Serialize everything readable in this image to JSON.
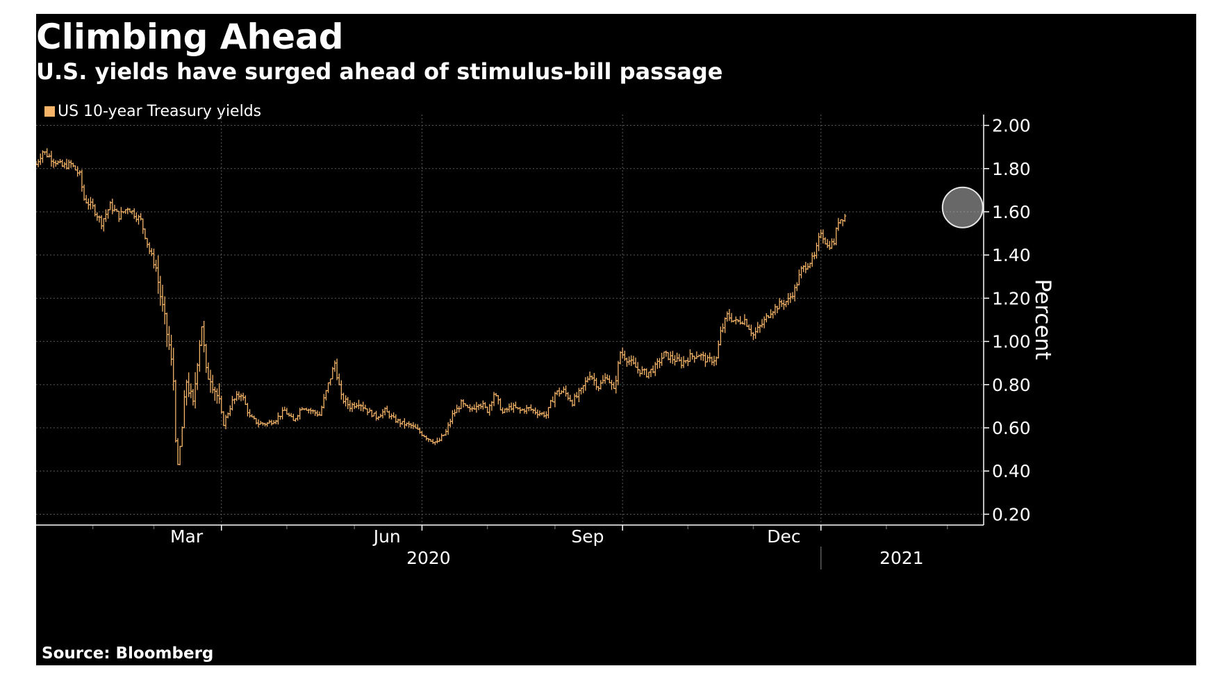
{
  "colors": {
    "background": "#000000",
    "series": "#f5b467",
    "grid": "#5a5a5a",
    "text": "#ffffff",
    "highlight": "#bdbdbd"
  },
  "source": "Source: Bloomberg",
  "chart_data": {
    "type": "bar",
    "style": "ohlc",
    "title": "Climbing Ahead",
    "subtitle": "U.S. yields have surged ahead of stimulus-bill passage",
    "ylabel": "Percent",
    "ylim": [
      0.15,
      2.05
    ],
    "y_ticks": [
      0.2,
      0.4,
      0.6,
      0.8,
      1.0,
      1.2,
      1.4,
      1.6,
      1.8,
      2.0
    ],
    "y_tick_labels": [
      "0.20",
      "0.40",
      "0.60",
      "0.80",
      "1.00",
      "1.20",
      "1.40",
      "1.60",
      "1.80",
      "2.00"
    ],
    "x_start_day": 0,
    "x_end_day": 434,
    "x_gridline_days": [
      85,
      177,
      269,
      360
    ],
    "x_minor_tick_days": [
      26,
      54,
      115,
      146,
      207,
      238,
      299,
      329,
      390,
      418
    ],
    "month_labels": [
      {
        "label": "Mar",
        "day": 69
      },
      {
        "label": "Jun",
        "day": 161
      },
      {
        "label": "Sep",
        "day": 253
      },
      {
        "label": "Dec",
        "day": 343
      }
    ],
    "year_labels": [
      {
        "label": "2020",
        "day": 180
      },
      {
        "label": "2021",
        "day": 397
      }
    ],
    "year_divider_day": 360,
    "legend": [
      "US 10-year Treasury yields"
    ],
    "annotation": {
      "type": "circle",
      "day": 425,
      "value": 1.62,
      "note": "highlight of latest yield peak"
    },
    "series": [
      {
        "name": "US 10-year Treasury yields",
        "anchor_points": [
          [
            0,
            1.82
          ],
          [
            3,
            1.88
          ],
          [
            8,
            1.84
          ],
          [
            12,
            1.81
          ],
          [
            16,
            1.82
          ],
          [
            20,
            1.77
          ],
          [
            22,
            1.66
          ],
          [
            26,
            1.62
          ],
          [
            30,
            1.55
          ],
          [
            34,
            1.63
          ],
          [
            38,
            1.58
          ],
          [
            42,
            1.62
          ],
          [
            46,
            1.58
          ],
          [
            48,
            1.56
          ],
          [
            52,
            1.42
          ],
          [
            55,
            1.34
          ],
          [
            58,
            1.15
          ],
          [
            61,
            0.98
          ],
          [
            63,
            0.82
          ],
          [
            64,
            0.55
          ],
          [
            65,
            0.42
          ],
          [
            67,
            0.6
          ],
          [
            69,
            0.82
          ],
          [
            72,
            0.7
          ],
          [
            74,
            0.92
          ],
          [
            76,
            1.08
          ],
          [
            78,
            0.85
          ],
          [
            80,
            0.84
          ],
          [
            83,
            0.75
          ],
          [
            86,
            0.62
          ],
          [
            90,
            0.72
          ],
          [
            94,
            0.76
          ],
          [
            98,
            0.65
          ],
          [
            102,
            0.62
          ],
          [
            106,
            0.62
          ],
          [
            110,
            0.64
          ],
          [
            114,
            0.68
          ],
          [
            118,
            0.63
          ],
          [
            122,
            0.7
          ],
          [
            126,
            0.68
          ],
          [
            130,
            0.66
          ],
          [
            134,
            0.8
          ],
          [
            137,
            0.9
          ],
          [
            140,
            0.74
          ],
          [
            144,
            0.7
          ],
          [
            148,
            0.72
          ],
          [
            152,
            0.68
          ],
          [
            156,
            0.65
          ],
          [
            160,
            0.68
          ],
          [
            164,
            0.64
          ],
          [
            168,
            0.62
          ],
          [
            172,
            0.61
          ],
          [
            176,
            0.58
          ],
          [
            180,
            0.55
          ],
          [
            184,
            0.53
          ],
          [
            188,
            0.58
          ],
          [
            191,
            0.66
          ],
          [
            195,
            0.71
          ],
          [
            199,
            0.68
          ],
          [
            203,
            0.72
          ],
          [
            207,
            0.68
          ],
          [
            210,
            0.76
          ],
          [
            214,
            0.67
          ],
          [
            218,
            0.7
          ],
          [
            222,
            0.68
          ],
          [
            226,
            0.69
          ],
          [
            230,
            0.67
          ],
          [
            234,
            0.66
          ],
          [
            238,
            0.76
          ],
          [
            242,
            0.77
          ],
          [
            246,
            0.72
          ],
          [
            250,
            0.77
          ],
          [
            254,
            0.85
          ],
          [
            258,
            0.79
          ],
          [
            262,
            0.84
          ],
          [
            265,
            0.77
          ],
          [
            268,
            0.95
          ],
          [
            272,
            0.91
          ],
          [
            276,
            0.87
          ],
          [
            280,
            0.85
          ],
          [
            284,
            0.88
          ],
          [
            288,
            0.94
          ],
          [
            292,
            0.92
          ],
          [
            296,
            0.9
          ],
          [
            300,
            0.93
          ],
          [
            304,
            0.94
          ],
          [
            308,
            0.91
          ],
          [
            312,
            0.92
          ],
          [
            314,
            1.04
          ],
          [
            317,
            1.12
          ],
          [
            321,
            1.09
          ],
          [
            325,
            1.1
          ],
          [
            329,
            1.03
          ],
          [
            333,
            1.08
          ],
          [
            337,
            1.14
          ],
          [
            341,
            1.17
          ],
          [
            345,
            1.19
          ],
          [
            348,
            1.24
          ],
          [
            351,
            1.33
          ],
          [
            354,
            1.36
          ],
          [
            357,
            1.39
          ],
          [
            360,
            1.51
          ],
          [
            363,
            1.44
          ],
          [
            366,
            1.46
          ],
          [
            368,
            1.56
          ],
          [
            371,
            1.58
          ]
        ]
      }
    ]
  }
}
